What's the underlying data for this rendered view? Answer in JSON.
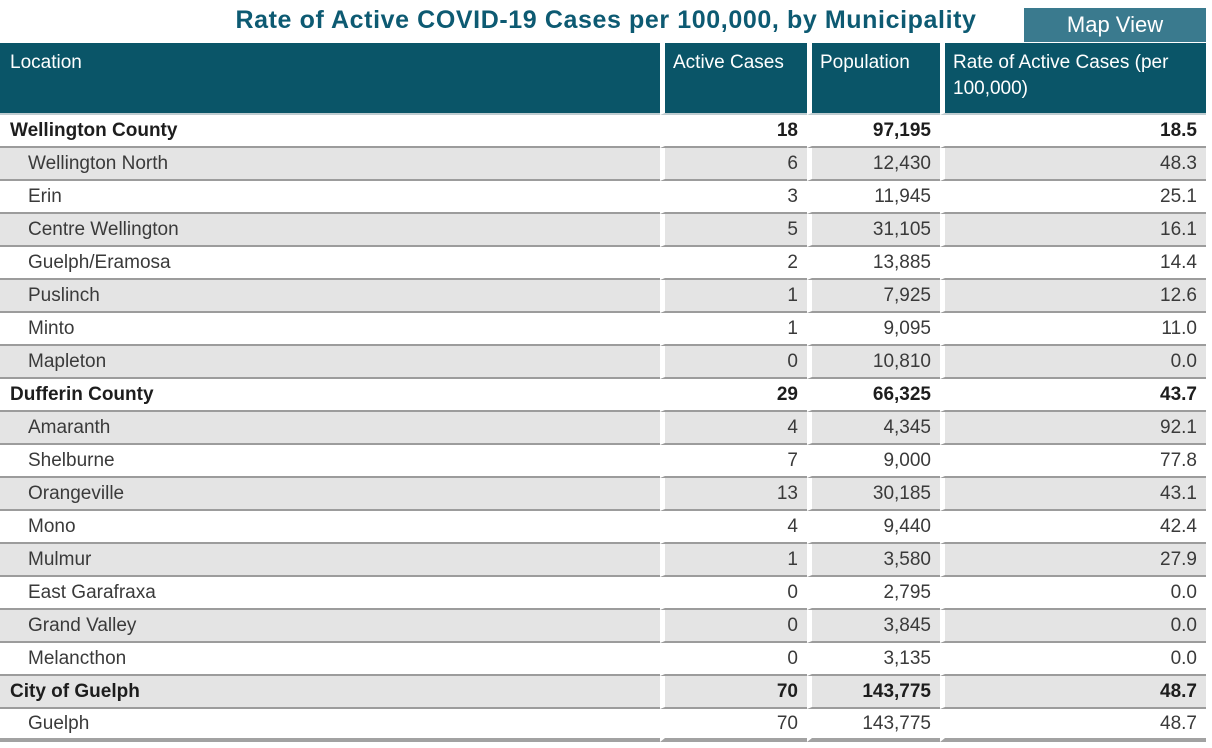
{
  "page": {
    "title": "Rate of Active COVID-19 Cases per 100,000, by Municipality",
    "map_view_label": "Map View"
  },
  "colors": {
    "header_bg": "#0A5568",
    "button_bg": "#3A7A8E",
    "title_text": "#0D5A72",
    "stripe": "#E4E4E4",
    "row_border": "#9C9C9C"
  },
  "table": {
    "columns": [
      "Location",
      "Active Cases",
      "Population",
      "Rate of Active Cases (per 100,000)"
    ],
    "rows": [
      {
        "location": "Wellington County",
        "level": "county",
        "active_cases": "18",
        "population": "97,195",
        "rate": "18.5"
      },
      {
        "location": "Wellington North",
        "level": "municipality",
        "active_cases": "6",
        "population": "12,430",
        "rate": "48.3"
      },
      {
        "location": "Erin",
        "level": "municipality",
        "active_cases": "3",
        "population": "11,945",
        "rate": "25.1"
      },
      {
        "location": "Centre Wellington",
        "level": "municipality",
        "active_cases": "5",
        "population": "31,105",
        "rate": "16.1"
      },
      {
        "location": "Guelph/Eramosa",
        "level": "municipality",
        "active_cases": "2",
        "population": "13,885",
        "rate": "14.4"
      },
      {
        "location": "Puslinch",
        "level": "municipality",
        "active_cases": "1",
        "population": "7,925",
        "rate": "12.6"
      },
      {
        "location": "Minto",
        "level": "municipality",
        "active_cases": "1",
        "population": "9,095",
        "rate": "11.0"
      },
      {
        "location": "Mapleton",
        "level": "municipality",
        "active_cases": "0",
        "population": "10,810",
        "rate": "0.0"
      },
      {
        "location": "Dufferin County",
        "level": "county",
        "active_cases": "29",
        "population": "66,325",
        "rate": "43.7"
      },
      {
        "location": "Amaranth",
        "level": "municipality",
        "active_cases": "4",
        "population": "4,345",
        "rate": "92.1"
      },
      {
        "location": "Shelburne",
        "level": "municipality",
        "active_cases": "7",
        "population": "9,000",
        "rate": "77.8"
      },
      {
        "location": "Orangeville",
        "level": "municipality",
        "active_cases": "13",
        "population": "30,185",
        "rate": "43.1"
      },
      {
        "location": "Mono",
        "level": "municipality",
        "active_cases": "4",
        "population": "9,440",
        "rate": "42.4"
      },
      {
        "location": "Mulmur",
        "level": "municipality",
        "active_cases": "1",
        "population": "3,580",
        "rate": "27.9"
      },
      {
        "location": "East Garafraxa",
        "level": "municipality",
        "active_cases": "0",
        "population": "2,795",
        "rate": "0.0"
      },
      {
        "location": "Grand Valley",
        "level": "municipality",
        "active_cases": "0",
        "population": "3,845",
        "rate": "0.0"
      },
      {
        "location": "Melancthon",
        "level": "municipality",
        "active_cases": "0",
        "population": "3,135",
        "rate": "0.0"
      },
      {
        "location": "City of Guelph",
        "level": "county",
        "active_cases": "70",
        "population": "143,775",
        "rate": "48.7"
      },
      {
        "location": "Guelph",
        "level": "municipality",
        "active_cases": "70",
        "population": "143,775",
        "rate": "48.7"
      }
    ]
  }
}
